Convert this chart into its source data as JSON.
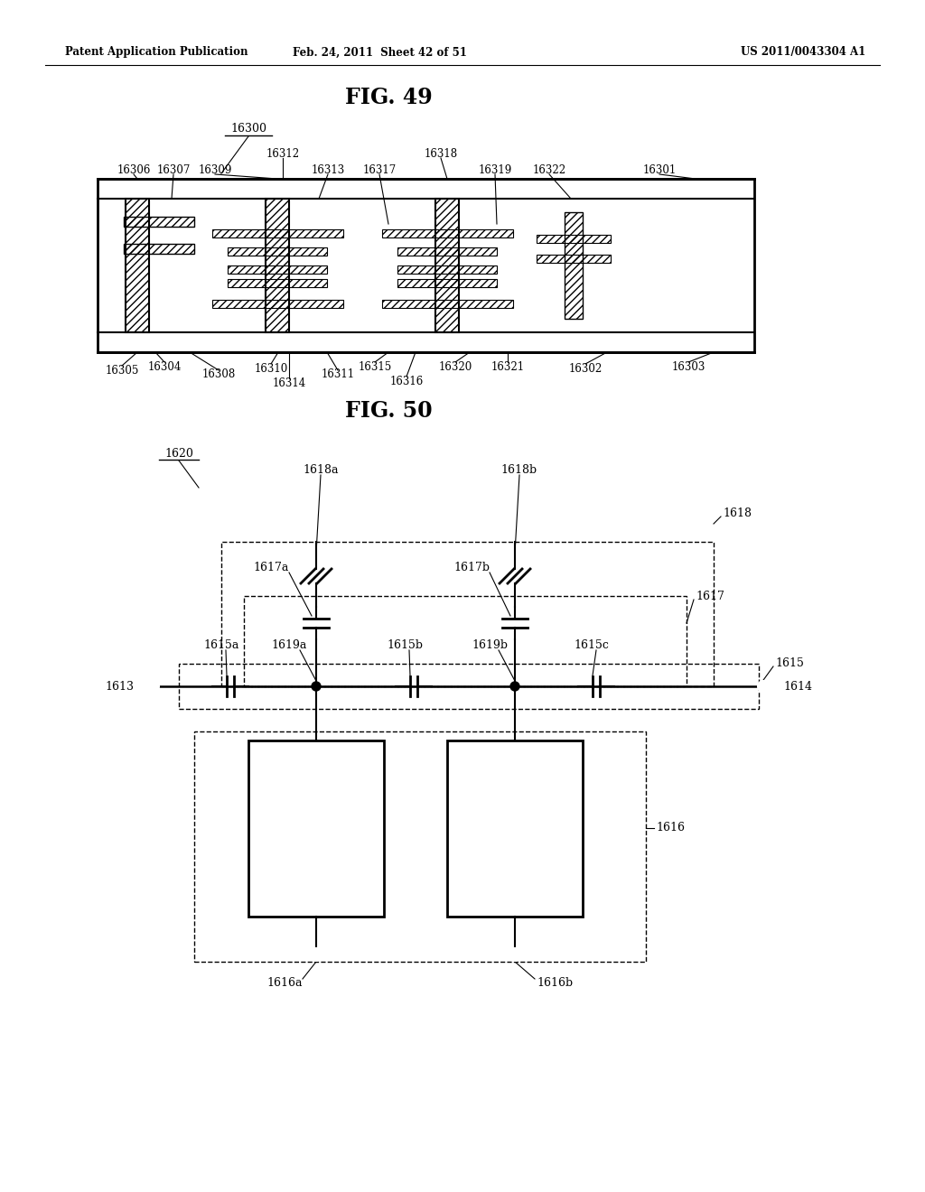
{
  "header_left": "Patent Application Publication",
  "header_mid": "Feb. 24, 2011  Sheet 42 of 51",
  "header_right": "US 2011/0043304 A1",
  "fig49_title": "FIG. 49",
  "fig50_title": "FIG. 50",
  "bg_color": "#ffffff",
  "line_color": "#000000"
}
